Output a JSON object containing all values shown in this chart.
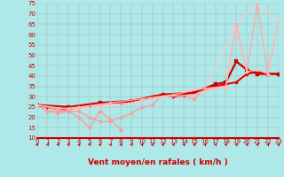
{
  "title": "",
  "xlabel": "Vent moyen/en rafales ( km/h )",
  "bg_color": "#aee8e8",
  "grid_color": "#999999",
  "xmin": 0,
  "xmax": 23,
  "ymin": 10,
  "ymax": 75,
  "yticks": [
    10,
    15,
    20,
    25,
    30,
    35,
    40,
    45,
    50,
    55,
    60,
    65,
    70,
    75
  ],
  "xticks": [
    0,
    1,
    2,
    3,
    4,
    5,
    6,
    7,
    8,
    9,
    10,
    11,
    12,
    13,
    14,
    15,
    16,
    17,
    18,
    19,
    20,
    21,
    22,
    23
  ],
  "xlabel_color": "#cc0000",
  "xlabel_fontsize": 6.5,
  "tick_fontsize": 5.0,
  "tick_color": "#cc0000",
  "arrow_color": "#cc0000",
  "lines": [
    {
      "x": [
        0,
        1,
        2,
        3,
        4,
        5,
        6,
        7,
        8,
        9,
        10,
        11,
        12,
        13,
        14,
        15,
        16
      ],
      "y": [
        26,
        23,
        22,
        23,
        23,
        20,
        18,
        18,
        20,
        22,
        25,
        26,
        31,
        30,
        30,
        29,
        34
      ],
      "color": "#ff9999",
      "lw": 0.9,
      "marker": "D",
      "ms": 2.2
    },
    {
      "x": [
        0,
        1,
        2,
        3,
        4,
        5,
        6,
        7,
        8
      ],
      "y": [
        26,
        23,
        23,
        23,
        20,
        15,
        23,
        19,
        14
      ],
      "color": "#ff9999",
      "lw": 0.9,
      "marker": "D",
      "ms": 2.2
    },
    {
      "x": [
        0,
        1,
        2,
        3,
        4,
        5,
        6,
        7,
        8,
        9,
        10,
        11,
        12,
        13,
        14,
        15,
        16,
        17,
        18,
        19,
        20,
        21,
        22,
        23
      ],
      "y": [
        26,
        25,
        24,
        24,
        25,
        26,
        27,
        27,
        27,
        28,
        29,
        30,
        31,
        30,
        31,
        32,
        34,
        35,
        36,
        37,
        41,
        42,
        41,
        41
      ],
      "color": "#dd0000",
      "lw": 1.4,
      "marker": "D",
      "ms": 2.0
    },
    {
      "x": [
        0,
        3,
        6,
        9,
        12,
        15,
        17,
        18,
        19,
        20,
        21,
        22,
        23
      ],
      "y": [
        26,
        25,
        27,
        28,
        31,
        32,
        36,
        37,
        47,
        43,
        41,
        41,
        41
      ],
      "color": "#cc0000",
      "lw": 1.6,
      "marker": "s",
      "ms": 2.5
    },
    {
      "x": [
        0,
        2,
        4,
        7,
        10,
        13,
        16,
        18,
        19,
        20,
        21,
        22,
        23
      ],
      "y": [
        26,
        24,
        25,
        27,
        29,
        31,
        34,
        35,
        65,
        42,
        75,
        41,
        66
      ],
      "color": "#ffaaaa",
      "lw": 1.0,
      "marker": "D",
      "ms": 2.2
    },
    {
      "x": [
        0,
        3,
        6,
        9,
        12,
        15,
        17,
        18,
        19,
        20,
        21,
        22,
        23
      ],
      "y": [
        26,
        24,
        26,
        27,
        30,
        31,
        34,
        35,
        63,
        42,
        43,
        41,
        66
      ],
      "color": "#ffbbbb",
      "lw": 0.9,
      "marker": "D",
      "ms": 2.0
    },
    {
      "x": [
        0,
        4,
        8,
        12,
        16,
        19,
        21,
        23
      ],
      "y": [
        26,
        25,
        27,
        31,
        34,
        65,
        75,
        66
      ],
      "color": "#ffcccc",
      "lw": 0.8,
      "marker": null,
      "ms": 0
    },
    {
      "x": [
        0,
        4,
        8,
        12,
        16,
        18,
        19,
        21,
        22,
        23
      ],
      "y": [
        26,
        24,
        26,
        30,
        33,
        35,
        37,
        42,
        41,
        41
      ],
      "color": "#ffcccc",
      "lw": 0.8,
      "marker": null,
      "ms": 0
    }
  ]
}
